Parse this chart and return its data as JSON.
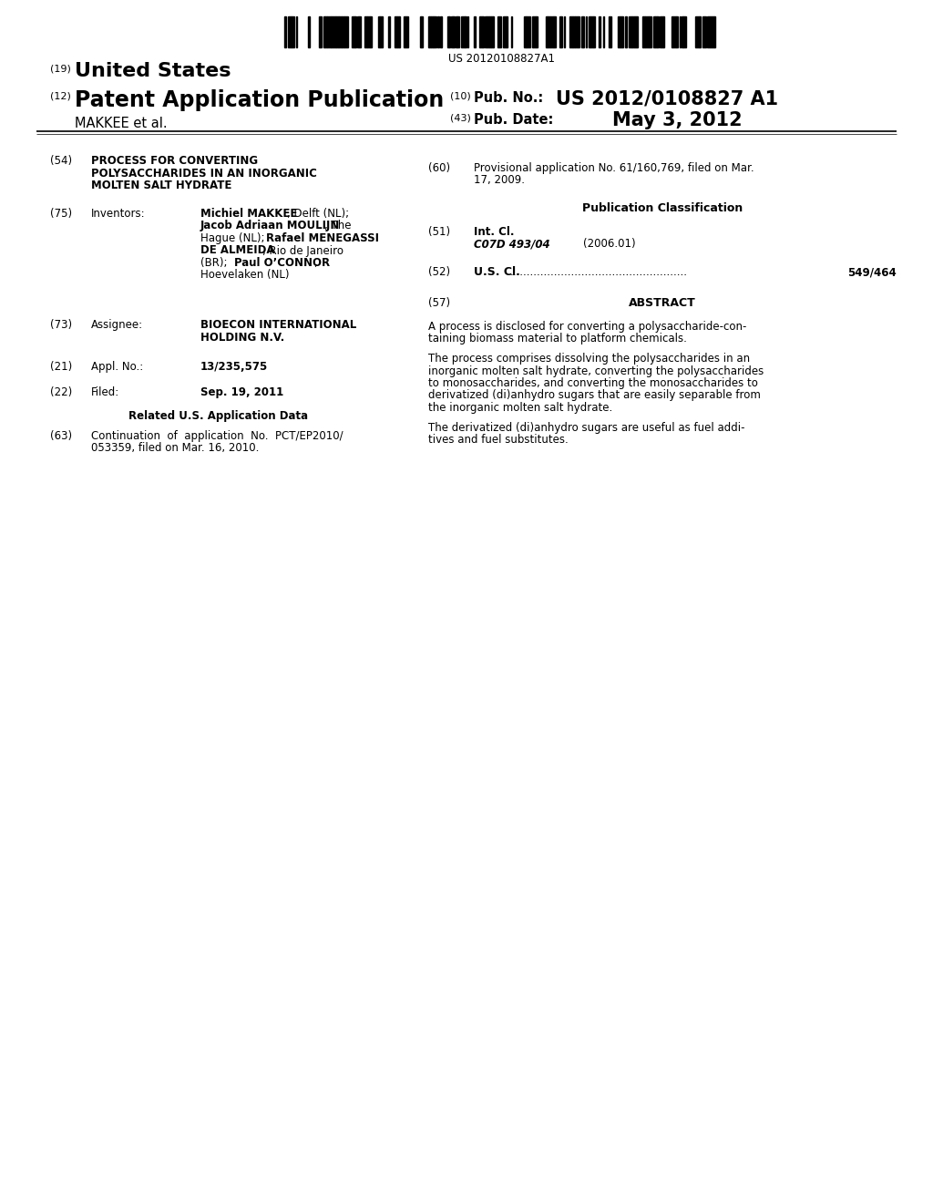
{
  "background_color": "#ffffff",
  "barcode_text": "US 20120108827A1",
  "country": "United States",
  "pub_type": "Patent Application Publication",
  "applicant": "MAKKEE et al.",
  "pub_no_label": "Pub. No.:",
  "pub_no_value": "US 2012/0108827 A1",
  "pub_date_label": "Pub. Date:",
  "pub_date_value": "May 3, 2012",
  "title_line1": "PROCESS FOR CONVERTING",
  "title_line2": "POLYSACCHARIDES IN AN INORGANIC",
  "title_line3": "MOLTEN SALT HYDRATE",
  "inv_line1_bold": "Michiel MAKKEE",
  "inv_line1_normal": ", Delft (NL);",
  "inv_line2_bold": "Jacob Adriaan MOULIJN",
  "inv_line2_normal": ", The",
  "inv_line3_normal": "Hague (NL); ",
  "inv_line3_bold": "Rafael MENEGASSI",
  "inv_line4_bold": "DE ALMEIDA",
  "inv_line4_normal": ", Rio de Janeiro",
  "inv_line5_normal": "(BR); ",
  "inv_line5_bold": "Paul O’CONNOR",
  "inv_line5_normal2": ",",
  "inv_line6_normal": "Hoevelaken (NL)",
  "assignee_line1": "BIOECON INTERNATIONAL",
  "assignee_line2": "HOLDING N.V.",
  "appl_no": "13/235,575",
  "filed_date": "Sep. 19, 2011",
  "related_header": "Related U.S. Application Data",
  "cont_line1": "Continuation  of  application  No.  PCT/EP2010/",
  "cont_line2": "053359, filed on Mar. 16, 2010.",
  "prov_line1": "Provisional application No. 61/160,769, filed on Mar.",
  "prov_line2": "17, 2009.",
  "pub_class_header": "Publication Classification",
  "int_cl_label": "Int. Cl.",
  "int_cl_code": "C07D 493/04",
  "int_cl_year": "(2006.01)",
  "us_cl_label": "U.S. Cl.",
  "us_cl_dots": "....................................................",
  "us_cl_value": "549/464",
  "abstract_header": "ABSTRACT",
  "abstract_p1_l1": "A process is disclosed for converting a polysaccharide-con-",
  "abstract_p1_l2": "taining biomass material to platform chemicals.",
  "abstract_p2_l1": "The process comprises dissolving the polysaccharides in an",
  "abstract_p2_l2": "inorganic molten salt hydrate, converting the polysaccharides",
  "abstract_p2_l3": "to monosaccharides, and converting the monosaccharides to",
  "abstract_p2_l4": "derivatized (di)anhydro sugars that are easily separable from",
  "abstract_p2_l5": "the inorganic molten salt hydrate.",
  "abstract_p3_l1": "The derivatized (di)anhydro sugars are useful as fuel addi-",
  "abstract_p3_l2": "tives and fuel substitutes."
}
